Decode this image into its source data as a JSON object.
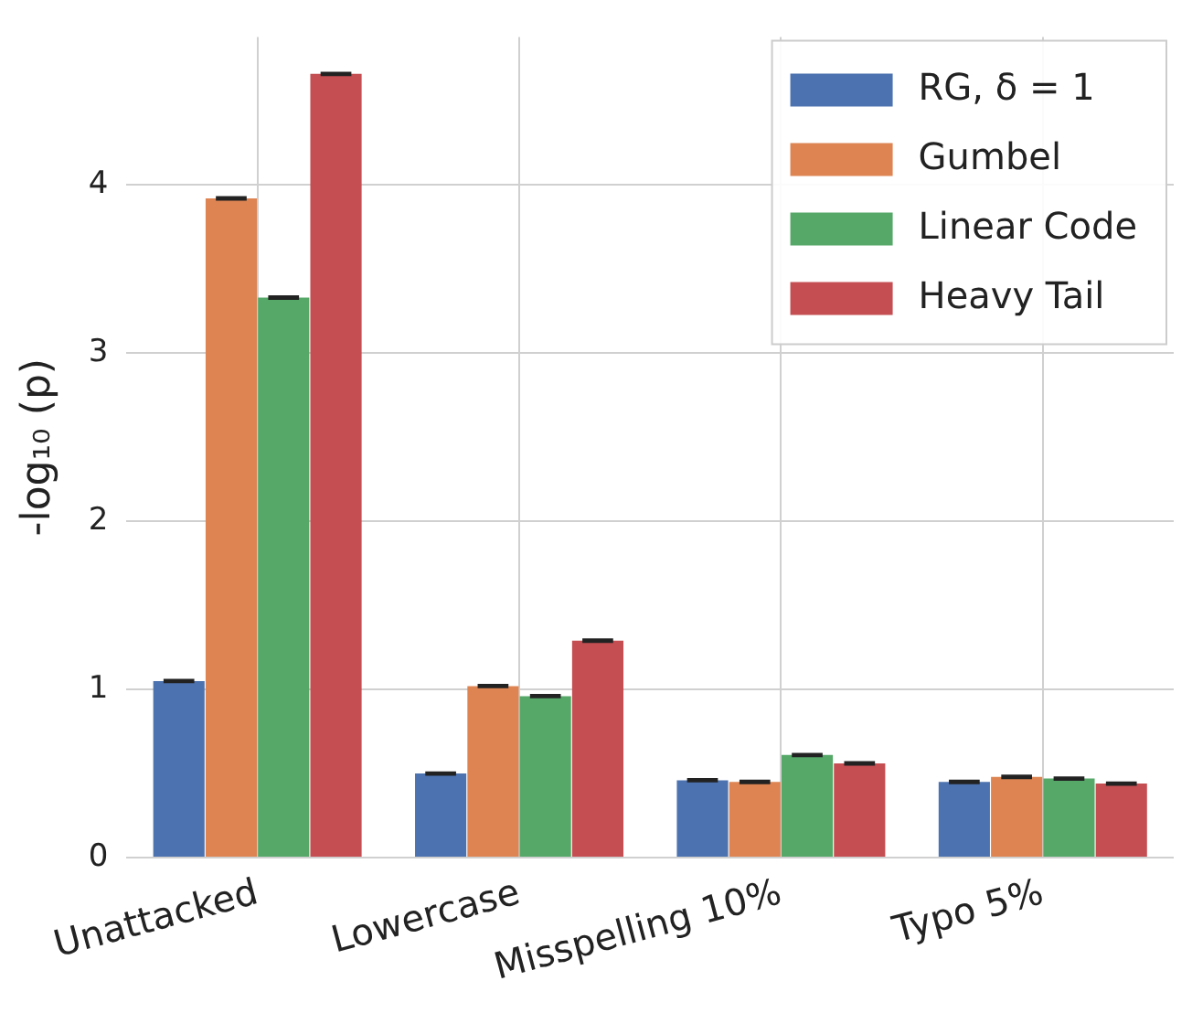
{
  "chart_data": {
    "type": "bar",
    "ylabel": "-log₁₀ (p)",
    "categories": [
      "Unattacked",
      "Lowercase",
      "Misspelling 10%",
      "Typo 5%"
    ],
    "series": [
      {
        "name": "RG, δ = 1",
        "color": "#4c72b0",
        "values": [
          1.05,
          0.5,
          0.46,
          0.45
        ],
        "errors": [
          0.005,
          0.005,
          0.005,
          0.005
        ]
      },
      {
        "name": "Gumbel",
        "color": "#dd8452",
        "values": [
          3.92,
          1.02,
          0.45,
          0.48
        ],
        "errors": [
          0.005,
          0.005,
          0.005,
          0.005
        ]
      },
      {
        "name": "Linear Code",
        "color": "#55a868",
        "values": [
          3.33,
          0.96,
          0.61,
          0.47
        ],
        "errors": [
          0.005,
          0.005,
          0.005,
          0.005
        ]
      },
      {
        "name": "Heavy Tail",
        "color": "#c44e52",
        "values": [
          4.66,
          1.29,
          0.56,
          0.44
        ],
        "errors": [
          0.005,
          0.005,
          0.005,
          0.005
        ]
      }
    ],
    "ylim": [
      0,
      4.88
    ],
    "yticks": [
      0,
      1,
      2,
      3,
      4
    ],
    "grid": true,
    "legend": "top right"
  }
}
